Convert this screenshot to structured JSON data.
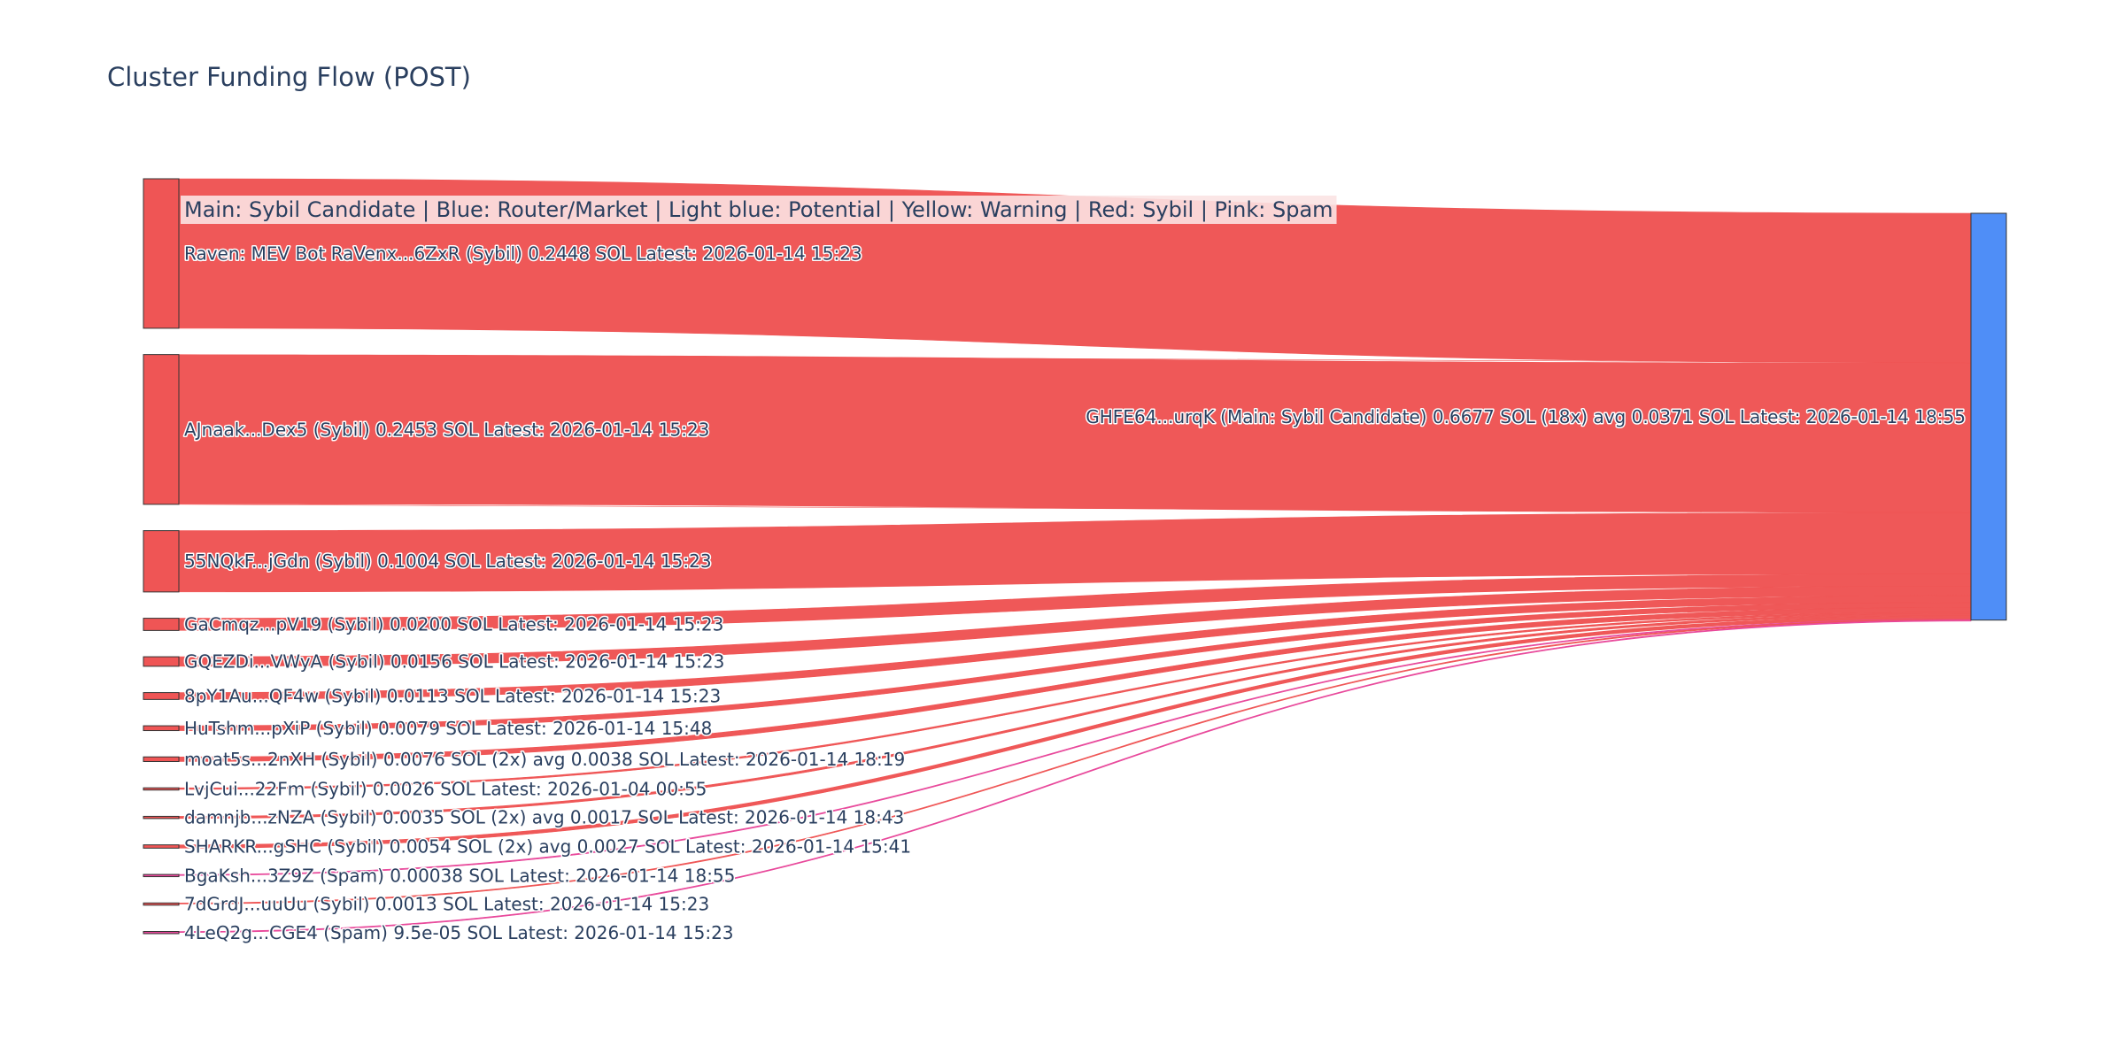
{
  "title": "Cluster Funding Flow (POST)",
  "legend_note": "Main: Sybil Candidate  |  Blue: Router/Market | Light blue: Potential | Yellow: Warning | Red: Sybil | Pink: Spam",
  "colors": {
    "sybil": "#ef5555",
    "spam": "#e8479a",
    "target": "#4f8ef7",
    "node_border": "#333333",
    "legend_bg": "#fbe3e3"
  },
  "chart_data": {
    "type": "sankey",
    "title": "Cluster Funding Flow (POST)",
    "target": {
      "id": "GHFE64...urqK",
      "label": "GHFE64...urqK (Main: Sybil Candidate) 0.6677 SOL (18x) avg 0.0371 SOL Latest: 2026-01-14 18:55",
      "role": "Main: Sybil Candidate",
      "value": 0.6677,
      "tx_count": 18,
      "avg": 0.0371,
      "latest": "2026-01-14 18:55",
      "color": "target"
    },
    "sources": [
      {
        "id": "Raven: MEV Bot RaVenx...6ZxR",
        "label": "Raven: MEV Bot RaVenx...6ZxR (Sybil) 0.2448 SOL Latest: 2026-01-14 15:23",
        "category": "Sybil",
        "value": 0.2448,
        "latest": "2026-01-14 15:23"
      },
      {
        "id": "AJnaak...Dex5",
        "label": "AJnaak...Dex5 (Sybil) 0.2453 SOL Latest: 2026-01-14 15:23",
        "category": "Sybil",
        "value": 0.2453,
        "latest": "2026-01-14 15:23"
      },
      {
        "id": "55NQkF...jGdn",
        "label": "55NQkF...jGdn (Sybil) 0.1004 SOL Latest: 2026-01-14 15:23",
        "category": "Sybil",
        "value": 0.1004,
        "latest": "2026-01-14 15:23"
      },
      {
        "id": "GaCmqz...pV19",
        "label": "GaCmqz...pV19 (Sybil) 0.0200 SOL Latest: 2026-01-14 15:23",
        "category": "Sybil",
        "value": 0.02,
        "latest": "2026-01-14 15:23"
      },
      {
        "id": "GQEZDi...VWyA",
        "label": "GQEZDi...VWyA (Sybil) 0.0156 SOL Latest: 2026-01-14 15:23",
        "category": "Sybil",
        "value": 0.0156,
        "latest": "2026-01-14 15:23"
      },
      {
        "id": "8pY1Au...QF4w",
        "label": "8pY1Au...QF4w (Sybil) 0.0113 SOL Latest: 2026-01-14 15:23",
        "category": "Sybil",
        "value": 0.0113,
        "latest": "2026-01-14 15:23"
      },
      {
        "id": "HuTshm...pXiP",
        "label": "HuTshm...pXiP (Sybil) 0.0079 SOL Latest: 2026-01-14 15:48",
        "category": "Sybil",
        "value": 0.0079,
        "latest": "2026-01-14 15:48"
      },
      {
        "id": "moat5s...2nXH",
        "label": "moat5s...2nXH (Sybil) 0.0076 SOL (2x) avg 0.0038 SOL Latest: 2026-01-14 18:19",
        "category": "Sybil",
        "value": 0.0076,
        "latest": "2026-01-14 18:19"
      },
      {
        "id": "LvjCui...22Fm",
        "label": "LvjCui...22Fm (Sybil) 0.0026 SOL Latest: 2026-01-04 00:55",
        "category": "Sybil",
        "value": 0.0026,
        "latest": "2026-01-04 00:55"
      },
      {
        "id": "damnjb...zNZA",
        "label": "damnjb...zNZA (Sybil) 0.0035 SOL (2x) avg 0.0017 SOL Latest: 2026-01-14 18:43",
        "category": "Sybil",
        "value": 0.0035,
        "latest": "2026-01-14 18:43"
      },
      {
        "id": "SHARKR...gSHC",
        "label": "SHARKR...gSHC (Sybil) 0.0054 SOL (2x) avg 0.0027 SOL Latest: 2026-01-14 15:41",
        "category": "Sybil",
        "value": 0.0054,
        "latest": "2026-01-14 15:41"
      },
      {
        "id": "BgaKsh...3Z9Z",
        "label": "BgaKsh...3Z9Z (Spam) 0.00038 SOL Latest: 2026-01-14 18:55",
        "category": "Spam",
        "value": 0.00038,
        "latest": "2026-01-14 18:55"
      },
      {
        "id": "7dGrdJ...uuUu",
        "label": "7dGrdJ...uuUu (Sybil) 0.0013 SOL Latest: 2026-01-14 15:23",
        "category": "Sybil",
        "value": 0.0013,
        "latest": "2026-01-14 15:23"
      },
      {
        "id": "4LeQ2g...CGE4",
        "label": "4LeQ2g...CGE4 (Spam) 9.5e-05 SOL Latest: 2026-01-14 15:23",
        "category": "Spam",
        "value": 9.5e-05,
        "latest": "2026-01-14 15:23"
      }
    ]
  }
}
